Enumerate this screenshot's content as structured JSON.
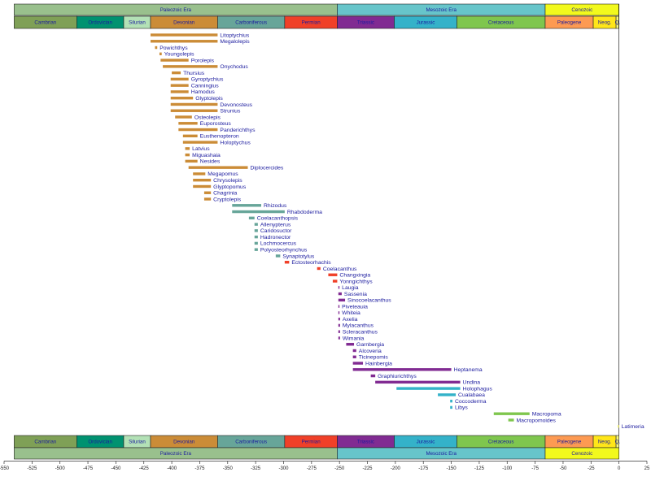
{
  "eras": [
    {
      "name": "Paleozoic Era",
      "start": -541,
      "end": -252,
      "color": "#99c08d"
    },
    {
      "name": "Mesozoic Era",
      "start": -252,
      "end": -66,
      "color": "#67c5ca"
    },
    {
      "name": "Cenozoic",
      "start": -66,
      "end": 0,
      "color": "#f2f91d"
    }
  ],
  "periods": [
    {
      "name": "Cambrian",
      "start": -541,
      "end": -485,
      "color": "#7fa056"
    },
    {
      "name": "Ordovician",
      "start": -485,
      "end": -443,
      "color": "#009270"
    },
    {
      "name": "Silurian",
      "start": -443,
      "end": -419,
      "color": "#b3e1b6"
    },
    {
      "name": "Devonian",
      "start": -419,
      "end": -359,
      "color": "#cb8c37"
    },
    {
      "name": "Carboniferous",
      "start": -359,
      "end": -299,
      "color": "#67a599"
    },
    {
      "name": "Permian",
      "start": -299,
      "end": -252,
      "color": "#f04028"
    },
    {
      "name": "Triassic",
      "start": -252,
      "end": -201,
      "color": "#812b92"
    },
    {
      "name": "Jurassic",
      "start": -201,
      "end": -145,
      "color": "#34b2c9"
    },
    {
      "name": "Cretaceous",
      "start": -145,
      "end": -66,
      "color": "#7fc64e"
    },
    {
      "name": "Paleogene",
      "start": -66,
      "end": -23,
      "color": "#fd9a52"
    },
    {
      "name": "Neog.",
      "start": -23,
      "end": -2.6,
      "color": "#ffe619"
    },
    {
      "name": "Q.",
      "start": -2.6,
      "end": 0,
      "color": "#f9f97f"
    }
  ],
  "chart_data": {
    "type": "bar",
    "orientation": "horizontal-range",
    "xlim": [
      -550,
      25
    ],
    "x_ticks": [
      -550,
      -525,
      -500,
      -475,
      -450,
      -425,
      -400,
      -375,
      -350,
      -325,
      -300,
      -275,
      -250,
      -225,
      -200,
      -175,
      -150,
      -125,
      -100,
      -75,
      -50,
      -25,
      0,
      25
    ],
    "taxa": [
      {
        "name": "Litoptychius",
        "start": -419,
        "end": -359,
        "color": "#cb8c37"
      },
      {
        "name": "Megalolepis",
        "start": -419,
        "end": -359,
        "color": "#cb8c37"
      },
      {
        "name": "Powichthys",
        "start": -415,
        "end": -413,
        "color": "#cb8c37"
      },
      {
        "name": "Youngolepis",
        "start": -411,
        "end": -409,
        "color": "#cb8c37"
      },
      {
        "name": "Porolepis",
        "start": -410,
        "end": -385,
        "color": "#cb8c37"
      },
      {
        "name": "Onychodus",
        "start": -408,
        "end": -359,
        "color": "#cb8c37"
      },
      {
        "name": "Thursius",
        "start": -400,
        "end": -392,
        "color": "#cb8c37"
      },
      {
        "name": "Gyroptychius",
        "start": -401,
        "end": -385,
        "color": "#cb8c37"
      },
      {
        "name": "Canningius",
        "start": -401,
        "end": -385,
        "color": "#cb8c37"
      },
      {
        "name": "Hamodus",
        "start": -401,
        "end": -385,
        "color": "#cb8c37"
      },
      {
        "name": "Glyptolepis",
        "start": -401,
        "end": -381,
        "color": "#cb8c37"
      },
      {
        "name": "Devonosteus",
        "start": -401,
        "end": -359,
        "color": "#cb8c37"
      },
      {
        "name": "Strunius",
        "start": -401,
        "end": -359,
        "color": "#cb8c37"
      },
      {
        "name": "Osteolepis",
        "start": -397,
        "end": -382,
        "color": "#cb8c37"
      },
      {
        "name": "Euporosteus",
        "start": -394,
        "end": -377,
        "color": "#cb8c37"
      },
      {
        "name": "Panderichthys",
        "start": -394,
        "end": -359,
        "color": "#cb8c37"
      },
      {
        "name": "Eusthenopteron",
        "start": -390,
        "end": -377,
        "color": "#cb8c37"
      },
      {
        "name": "Holoptychus",
        "start": -390,
        "end": -359,
        "color": "#cb8c37"
      },
      {
        "name": "Latvius",
        "start": -388,
        "end": -384,
        "color": "#cb8c37"
      },
      {
        "name": "Miguashaia",
        "start": -388,
        "end": -384,
        "color": "#cb8c37"
      },
      {
        "name": "Nesides",
        "start": -388,
        "end": -377,
        "color": "#cb8c37"
      },
      {
        "name": "Diplocercides",
        "start": -385,
        "end": -332,
        "color": "#cb8c37"
      },
      {
        "name": "Megapomus",
        "start": -381,
        "end": -370,
        "color": "#cb8c37"
      },
      {
        "name": "Chrysolepis",
        "start": -381,
        "end": -365,
        "color": "#cb8c37"
      },
      {
        "name": "Glyptopomus",
        "start": -381,
        "end": -365,
        "color": "#cb8c37"
      },
      {
        "name": "Chagrinia",
        "start": -371,
        "end": -365,
        "color": "#cb8c37"
      },
      {
        "name": "Cryptolepis",
        "start": -371,
        "end": -365,
        "color": "#cb8c37"
      },
      {
        "name": "Rhizodus",
        "start": -346,
        "end": -320,
        "color": "#67a599"
      },
      {
        "name": "Rhabdoderma",
        "start": -346,
        "end": -299,
        "color": "#67a599"
      },
      {
        "name": "Coelacanthopsis",
        "start": -331,
        "end": -326,
        "color": "#67a599"
      },
      {
        "name": "Allenypterus",
        "start": -326,
        "end": -323,
        "color": "#67a599"
      },
      {
        "name": "Caridosuctor",
        "start": -326,
        "end": -323,
        "color": "#67a599"
      },
      {
        "name": "Hadronector",
        "start": -326,
        "end": -323,
        "color": "#67a599"
      },
      {
        "name": "Lochmocercus",
        "start": -326,
        "end": -323,
        "color": "#67a599"
      },
      {
        "name": "Polyosteorhynchus",
        "start": -326,
        "end": -323,
        "color": "#67a599"
      },
      {
        "name": "Synaptotylus",
        "start": -307,
        "end": -303,
        "color": "#67a599"
      },
      {
        "name": "Ectosteorhachis",
        "start": -299,
        "end": -295,
        "color": "#f04028"
      },
      {
        "name": "Coelacanthus",
        "start": -270,
        "end": -267,
        "color": "#f04028"
      },
      {
        "name": "Changxingia",
        "start": -260,
        "end": -252,
        "color": "#f04028"
      },
      {
        "name": "Yonngichthys",
        "start": -256,
        "end": -252,
        "color": "#f04028"
      },
      {
        "name": "Laugia",
        "start": -251,
        "end": -250,
        "color": "#812b92"
      },
      {
        "name": "Sassenia",
        "start": -251,
        "end": -248,
        "color": "#812b92"
      },
      {
        "name": "Sinocoelacanthus",
        "start": -251,
        "end": -245,
        "color": "#812b92"
      },
      {
        "name": "Piveteauia",
        "start": -251,
        "end": -250,
        "color": "#812b92"
      },
      {
        "name": "Whiteia",
        "start": -251,
        "end": -250,
        "color": "#812b92"
      },
      {
        "name": "Axelia",
        "start": -251,
        "end": -249.5,
        "color": "#812b92"
      },
      {
        "name": "Mylacanthus",
        "start": -251,
        "end": -249.5,
        "color": "#812b92"
      },
      {
        "name": "Scleracanthus",
        "start": -251,
        "end": -249.5,
        "color": "#812b92"
      },
      {
        "name": "Wimania",
        "start": -251,
        "end": -249.5,
        "color": "#812b92"
      },
      {
        "name": "Garnbergia",
        "start": -244,
        "end": -237,
        "color": "#812b92"
      },
      {
        "name": "Alcoveria",
        "start": -238,
        "end": -235,
        "color": "#812b92"
      },
      {
        "name": "Ticinepomis",
        "start": -238,
        "end": -235,
        "color": "#812b92"
      },
      {
        "name": "Hainbergia",
        "start": -238,
        "end": -229,
        "color": "#812b92"
      },
      {
        "name": "Heptanema",
        "start": -238,
        "end": -150,
        "color": "#812b92"
      },
      {
        "name": "Graphiurichthys",
        "start": -222,
        "end": -218,
        "color": "#812b92"
      },
      {
        "name": "Undina",
        "start": -218,
        "end": -142,
        "color": "#812b92"
      },
      {
        "name": "Holophagus",
        "start": -199,
        "end": -142,
        "color": "#34b2c9"
      },
      {
        "name": "Cualabaea",
        "start": -162,
        "end": -146,
        "color": "#34b2c9"
      },
      {
        "name": "Coccoderma",
        "start": -151,
        "end": -149,
        "color": "#34b2c9"
      },
      {
        "name": "Libys",
        "start": -151,
        "end": -149,
        "color": "#34b2c9"
      },
      {
        "name": "Macropoma",
        "start": -112,
        "end": -80,
        "color": "#7fc64e"
      },
      {
        "name": "Macropomoides",
        "start": -99,
        "end": -94,
        "color": "#7fc64e"
      },
      {
        "name": "Latimeria",
        "start": -1.2,
        "end": 0,
        "color": "#f9f97f"
      }
    ]
  }
}
